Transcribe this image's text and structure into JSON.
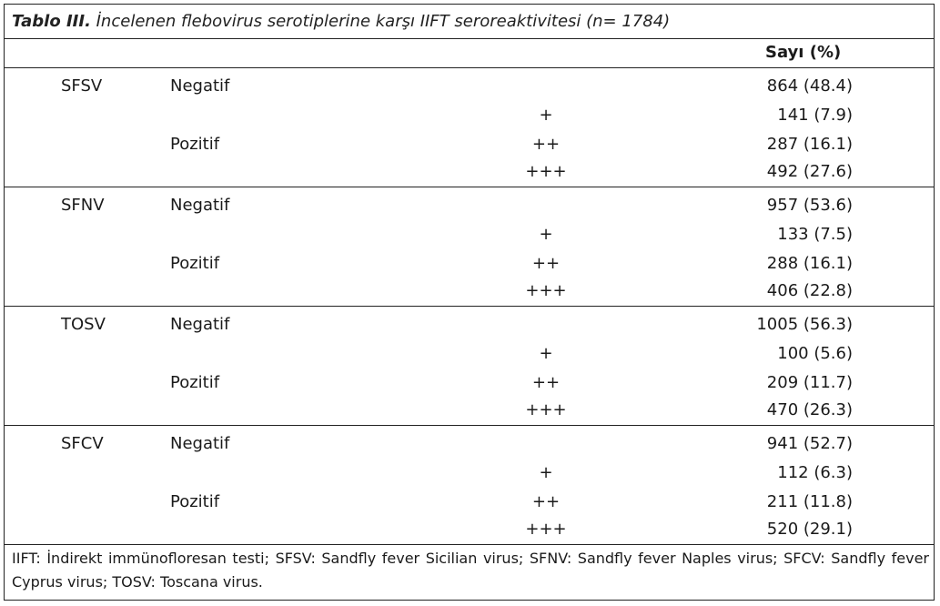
{
  "title": {
    "bold": "Tablo III.",
    "rest": " İncelenen flebovirus serotiplerine karşı IIFT seroreaktivitesi (n= 1784)"
  },
  "header": {
    "count_col": "Sayı (%)"
  },
  "groups": [
    {
      "serotype": "SFSV",
      "rows": [
        {
          "status": "Negatif",
          "grade": "",
          "count": "864 (48.4)"
        },
        {
          "status": "",
          "grade": "+",
          "count": "141 (7.9)"
        },
        {
          "status": "Pozitif",
          "grade": "++",
          "count": "287 (16.1)"
        },
        {
          "status": "",
          "grade": "+++",
          "count": "492 (27.6)"
        }
      ]
    },
    {
      "serotype": "SFNV",
      "rows": [
        {
          "status": "Negatif",
          "grade": "",
          "count": "957 (53.6)"
        },
        {
          "status": "",
          "grade": "+",
          "count": "133 (7.5)"
        },
        {
          "status": "Pozitif",
          "grade": "++",
          "count": "288 (16.1)"
        },
        {
          "status": "",
          "grade": "+++",
          "count": "406 (22.8)"
        }
      ]
    },
    {
      "serotype": "TOSV",
      "rows": [
        {
          "status": "Negatif",
          "grade": "",
          "count": "1005 (56.3)"
        },
        {
          "status": "",
          "grade": "+",
          "count": "100 (5.6)"
        },
        {
          "status": "Pozitif",
          "grade": "++",
          "count": "209 (11.7)"
        },
        {
          "status": "",
          "grade": "+++",
          "count": "470 (26.3)"
        }
      ]
    },
    {
      "serotype": "SFCV",
      "rows": [
        {
          "status": "Negatif",
          "grade": "",
          "count": "941 (52.7)"
        },
        {
          "status": "",
          "grade": "+",
          "count": "112 (6.3)"
        },
        {
          "status": "Pozitif",
          "grade": "++",
          "count": "211 (11.8)"
        },
        {
          "status": "",
          "grade": "+++",
          "count": "520 (29.1)"
        }
      ]
    }
  ],
  "footnote": "IIFT: İndirekt immünofloresan testi; SFSV: Sandfly fever Sicilian virus; SFNV: Sandfly fever Naples virus; SFCV: Sandfly fever Cyprus virus; TOSV: Toscana virus."
}
